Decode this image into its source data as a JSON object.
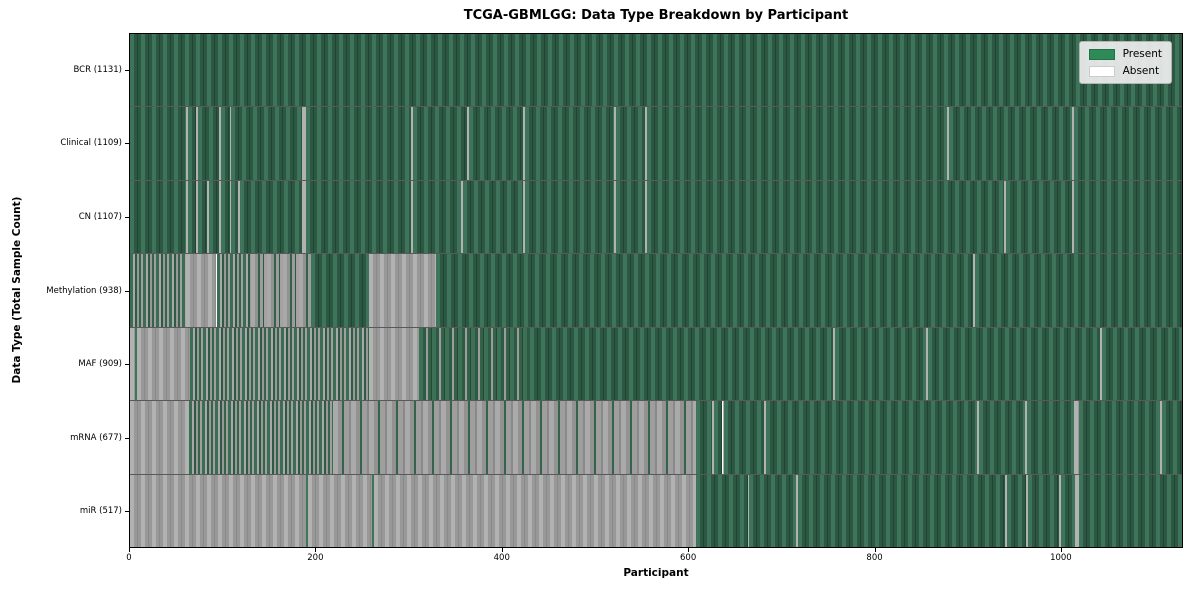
{
  "title": "TCGA-GBMLGG: Data Type Breakdown by Participant",
  "chart_data": {
    "type": "heatmap",
    "title": "TCGA-GBMLGG: Data Type Breakdown by Participant",
    "xlabel": "Participant",
    "ylabel": "Data Type (Total Sample Count)",
    "x_max": 1131,
    "x_ticks": [
      0,
      200,
      400,
      600,
      800,
      1000
    ],
    "grid": false,
    "legend_position": "upper right",
    "legend": [
      {
        "label": "Present",
        "color": "#2e8b57"
      },
      {
        "label": "Absent",
        "color": "#ffffff"
      }
    ],
    "states_note": "present=green bar, absent=white/gray bar; mix segments are dense alternations of present and absent participants",
    "rows": [
      {
        "label": "BCR (1131)",
        "name": "BCR",
        "present_count": 1131,
        "segments": [
          [
            0,
            1131,
            "present"
          ]
        ]
      },
      {
        "label": "Clinical (1109)",
        "name": "Clinical",
        "present_count": 1109,
        "segments": [
          [
            0,
            60,
            "present"
          ],
          [
            60,
            62,
            "absent"
          ],
          [
            62,
            71,
            "present"
          ],
          [
            71,
            73,
            "absent"
          ],
          [
            73,
            96,
            "present"
          ],
          [
            96,
            98,
            "absent"
          ],
          [
            98,
            107,
            "present"
          ],
          [
            107,
            109,
            "absent"
          ],
          [
            109,
            185,
            "present"
          ],
          [
            185,
            189,
            "absent"
          ],
          [
            189,
            302,
            "present"
          ],
          [
            302,
            304,
            "absent"
          ],
          [
            304,
            362,
            "present"
          ],
          [
            362,
            364,
            "absent"
          ],
          [
            364,
            423,
            "present"
          ],
          [
            423,
            425,
            "absent"
          ],
          [
            425,
            520,
            "present"
          ],
          [
            520,
            522,
            "absent"
          ],
          [
            522,
            554,
            "present"
          ],
          [
            554,
            556,
            "absent"
          ],
          [
            556,
            878,
            "present"
          ],
          [
            878,
            880,
            "absent"
          ],
          [
            880,
            1013,
            "present"
          ],
          [
            1013,
            1015,
            "absent"
          ],
          [
            1015,
            1131,
            "present"
          ]
        ]
      },
      {
        "label": "CN (1107)",
        "name": "CN",
        "present_count": 1107,
        "segments": [
          [
            0,
            60,
            "present"
          ],
          [
            60,
            62,
            "absent"
          ],
          [
            62,
            71,
            "present"
          ],
          [
            71,
            73,
            "absent"
          ],
          [
            73,
            83,
            "present"
          ],
          [
            83,
            85,
            "absent"
          ],
          [
            85,
            96,
            "present"
          ],
          [
            96,
            98,
            "absent"
          ],
          [
            98,
            107,
            "present"
          ],
          [
            107,
            109,
            "absent"
          ],
          [
            109,
            116,
            "present"
          ],
          [
            116,
            118,
            "absent"
          ],
          [
            118,
            185,
            "present"
          ],
          [
            185,
            189,
            "absent"
          ],
          [
            189,
            302,
            "present"
          ],
          [
            302,
            304,
            "absent"
          ],
          [
            304,
            356,
            "present"
          ],
          [
            356,
            358,
            "absent"
          ],
          [
            358,
            423,
            "present"
          ],
          [
            423,
            425,
            "absent"
          ],
          [
            425,
            520,
            "present"
          ],
          [
            520,
            522,
            "absent"
          ],
          [
            522,
            554,
            "present"
          ],
          [
            554,
            556,
            "absent"
          ],
          [
            556,
            940,
            "present"
          ],
          [
            940,
            942,
            "absent"
          ],
          [
            942,
            1013,
            "present"
          ],
          [
            1013,
            1015,
            "absent"
          ],
          [
            1015,
            1131,
            "present"
          ]
        ]
      },
      {
        "label": "Methylation (938)",
        "name": "Methylation",
        "present_count": 938,
        "segments": [
          [
            0,
            60,
            "mix50"
          ],
          [
            60,
            93,
            "absent"
          ],
          [
            93,
            130,
            "mix50"
          ],
          [
            130,
            195,
            "mix75"
          ],
          [
            195,
            257,
            "present"
          ],
          [
            257,
            329,
            "absent"
          ],
          [
            329,
            906,
            "present"
          ],
          [
            906,
            908,
            "absent"
          ],
          [
            908,
            1131,
            "present"
          ]
        ]
      },
      {
        "label": "MAF (909)",
        "name": "MAF",
        "present_count": 909,
        "segments": [
          [
            0,
            5,
            "absent"
          ],
          [
            5,
            7,
            "present"
          ],
          [
            7,
            65,
            "absent"
          ],
          [
            65,
            257,
            "mix50"
          ],
          [
            257,
            311,
            "absent"
          ],
          [
            311,
            430,
            "mix25"
          ],
          [
            430,
            756,
            "present"
          ],
          [
            756,
            758,
            "absent"
          ],
          [
            758,
            856,
            "present"
          ],
          [
            856,
            858,
            "absent"
          ],
          [
            858,
            1043,
            "present"
          ],
          [
            1043,
            1045,
            "absent"
          ],
          [
            1045,
            1131,
            "present"
          ]
        ]
      },
      {
        "label": "mRNA (677)",
        "name": "mRNA",
        "present_count": 677,
        "segments": [
          [
            0,
            63,
            "absent"
          ],
          [
            63,
            218,
            "mix50"
          ],
          [
            218,
            609,
            "mix85"
          ],
          [
            609,
            626,
            "present"
          ],
          [
            626,
            628,
            "absent"
          ],
          [
            628,
            637,
            "present"
          ],
          [
            637,
            639,
            "absent"
          ],
          [
            639,
            682,
            "present"
          ],
          [
            682,
            684,
            "absent"
          ],
          [
            684,
            911,
            "present"
          ],
          [
            911,
            913,
            "absent"
          ],
          [
            913,
            962,
            "present"
          ],
          [
            962,
            964,
            "absent"
          ],
          [
            964,
            1015,
            "present"
          ],
          [
            1015,
            1020,
            "absent"
          ],
          [
            1020,
            1107,
            "present"
          ],
          [
            1107,
            1109,
            "absent"
          ],
          [
            1109,
            1131,
            "present"
          ]
        ]
      },
      {
        "label": "miR (517)",
        "name": "miR",
        "present_count": 517,
        "segments": [
          [
            0,
            189,
            "absent"
          ],
          [
            189,
            191,
            "present"
          ],
          [
            191,
            260,
            "absent"
          ],
          [
            260,
            262,
            "present"
          ],
          [
            262,
            609,
            "absent"
          ],
          [
            609,
            664,
            "present"
          ],
          [
            664,
            666,
            "absent"
          ],
          [
            666,
            716,
            "present"
          ],
          [
            716,
            718,
            "absent"
          ],
          [
            718,
            941,
            "present"
          ],
          [
            941,
            943,
            "absent"
          ],
          [
            943,
            963,
            "present"
          ],
          [
            963,
            965,
            "absent"
          ],
          [
            965,
            999,
            "present"
          ],
          [
            999,
            1001,
            "absent"
          ],
          [
            1001,
            1016,
            "present"
          ],
          [
            1016,
            1020,
            "absent"
          ],
          [
            1020,
            1131,
            "present"
          ]
        ]
      }
    ],
    "colors": {
      "present_fill": "#2e8b57",
      "absent_fill": "#ffffff",
      "bar_edge": "#1f4434",
      "row_divider": "#000000"
    }
  }
}
